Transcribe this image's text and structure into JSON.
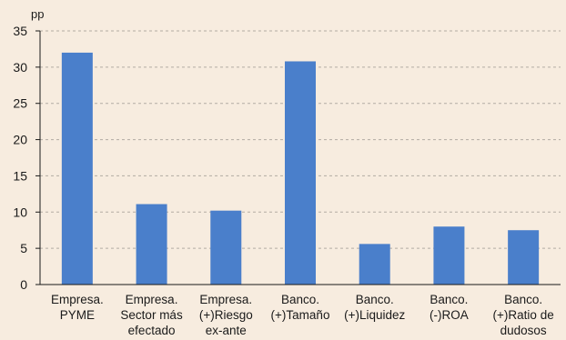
{
  "chart_data": {
    "type": "bar",
    "unit_label": "pp",
    "categories": [
      [
        "Empresa.",
        "PYME"
      ],
      [
        "Empresa.",
        "Sector más",
        "efectado"
      ],
      [
        "Empresa.",
        "(+)Riesgo",
        "ex-ante"
      ],
      [
        "Banco.",
        "(+)Tamaño"
      ],
      [
        "Banco.",
        "(+)Liquidez"
      ],
      [
        "Banco.",
        "(-)ROA"
      ],
      [
        "Banco.",
        "(+)Ratio de",
        "dudosos"
      ]
    ],
    "values": [
      32,
      11.1,
      10.2,
      30.8,
      5.6,
      8.0,
      7.5
    ],
    "ylim": [
      0,
      35
    ],
    "yticks": [
      0,
      5,
      10,
      15,
      20,
      25,
      30,
      35
    ],
    "grid": true,
    "bar_color": "#4a7fcb",
    "grid_color": "#b3aba3",
    "background": "#f7ecdf"
  }
}
